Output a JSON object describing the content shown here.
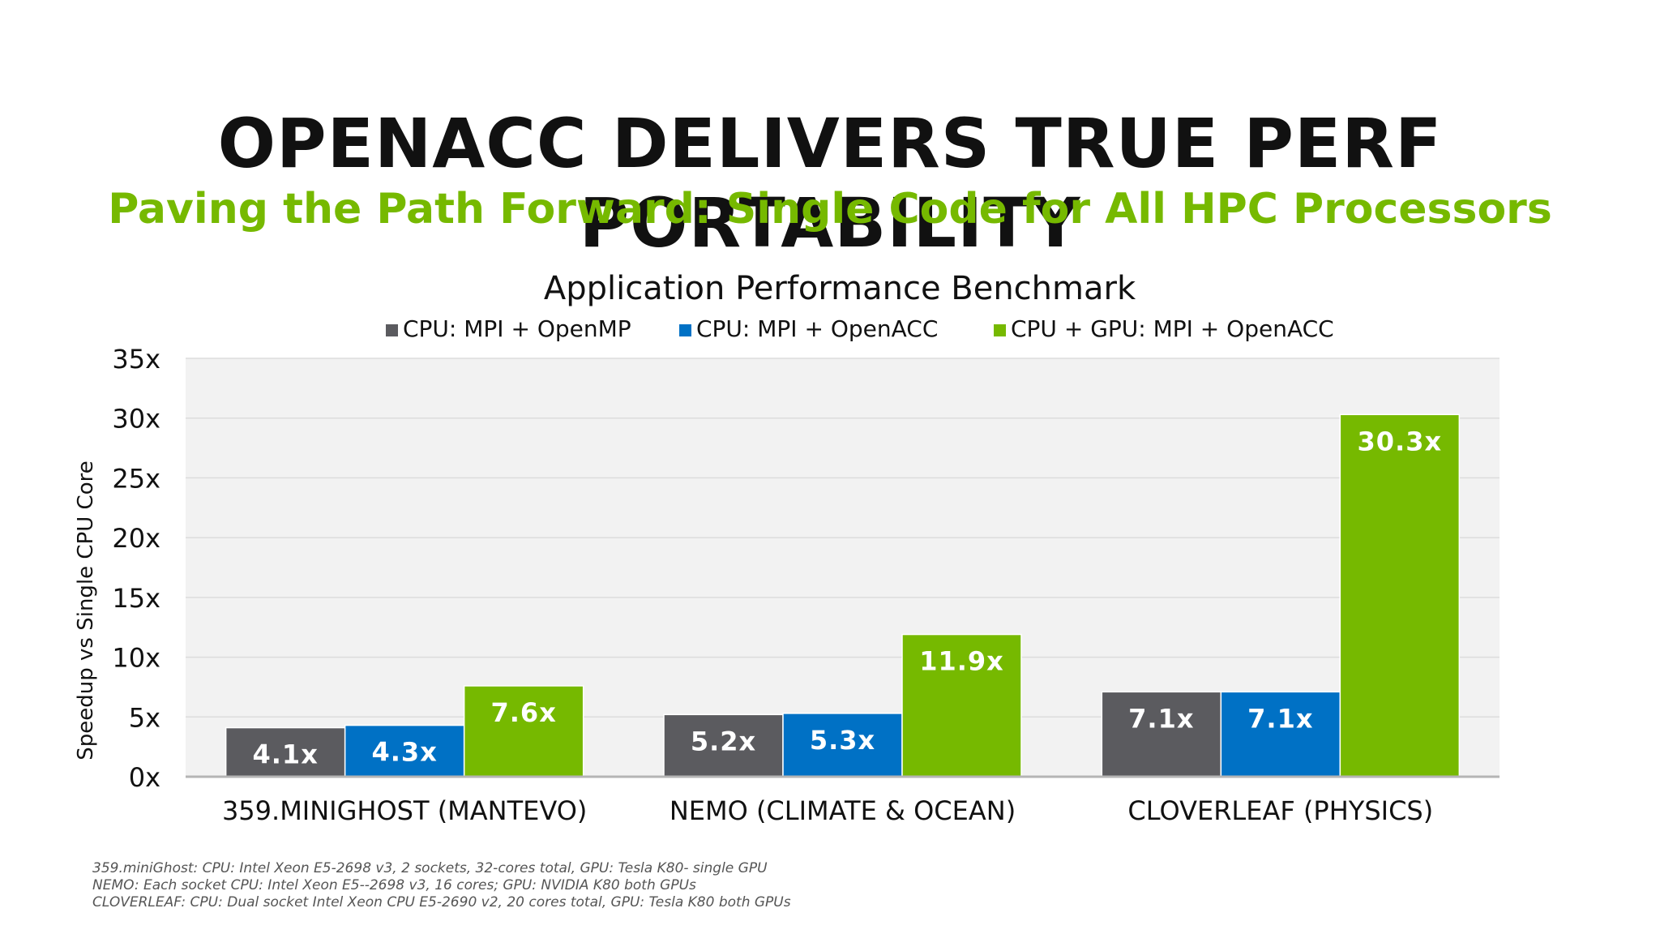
{
  "slide": {
    "title": "OPENACC DELIVERS TRUE PERF PORTABILITY",
    "subtitle": "Paving the Path Forward: Single Code for All HPC Processors"
  },
  "chart_data": {
    "type": "bar",
    "title": "Application Performance Benchmark",
    "xlabel": "",
    "ylabel": "Speedup vs Single CPU Core",
    "ylim": [
      0,
      35
    ],
    "yticks": [
      0,
      5,
      10,
      15,
      20,
      25,
      30,
      35
    ],
    "ytick_labels": [
      "0x",
      "5x",
      "10x",
      "15x",
      "20x",
      "25x",
      "30x",
      "35x"
    ],
    "grid": true,
    "legend_position": "top",
    "categories": [
      "359.MINIGHOST (MANTEVO)",
      "NEMO (CLIMATE & OCEAN)",
      "CLOVERLEAF (PHYSICS)"
    ],
    "series": [
      {
        "name": "CPU: MPI + OpenMP",
        "color": "#5b5b5f",
        "values": [
          4.1,
          5.2,
          7.1
        ],
        "labels": [
          "4.1x",
          "5.2x",
          "7.1x"
        ]
      },
      {
        "name": "CPU: MPI + OpenACC",
        "color": "#0071c5",
        "values": [
          4.3,
          5.3,
          7.1
        ],
        "labels": [
          "4.3x",
          "5.3x",
          "7.1x"
        ]
      },
      {
        "name": "CPU + GPU: MPI + OpenACC",
        "color": "#76b900",
        "values": [
          7.6,
          11.9,
          30.3
        ],
        "labels": [
          "7.6x",
          "11.9x",
          "30.3x"
        ]
      }
    ]
  },
  "footnotes": [
    "359.miniGhost: CPU: Intel Xeon E5-2698 v3, 2 sockets, 32-cores total, GPU: Tesla K80- single GPU",
    "NEMO: Each socket CPU: Intel Xeon E5--2698 v3, 16 cores; GPU: NVIDIA K80 both GPUs",
    "CLOVERLEAF: CPU: Dual socket Intel Xeon CPU E5-2690 v2, 20 cores total, GPU: Tesla K80 both GPUs"
  ]
}
